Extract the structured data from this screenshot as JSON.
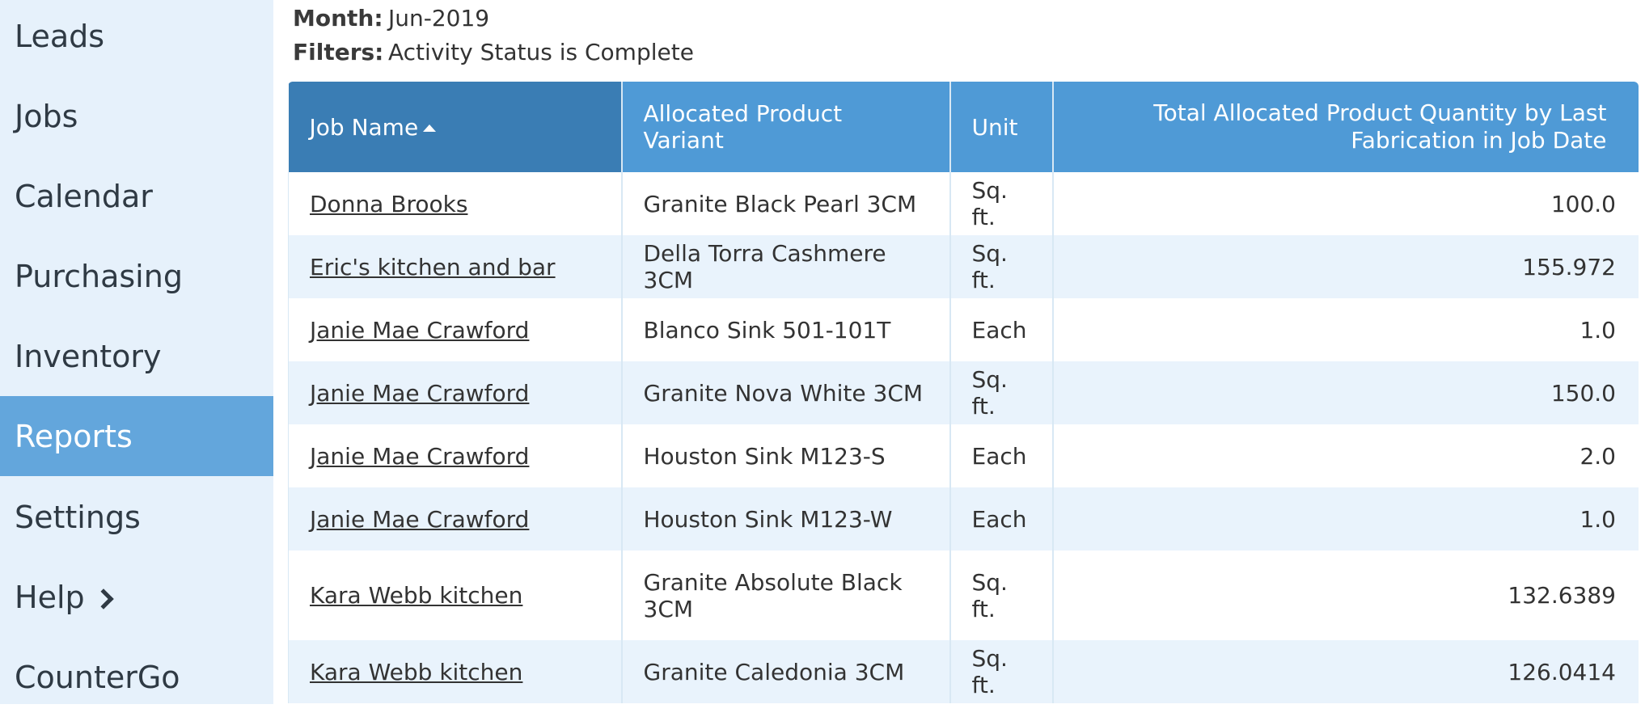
{
  "sidebar": {
    "items": [
      {
        "label": "Leads"
      },
      {
        "label": "Jobs"
      },
      {
        "label": "Calendar"
      },
      {
        "label": "Purchasing"
      },
      {
        "label": "Inventory"
      },
      {
        "label": "Reports"
      },
      {
        "label": "Settings"
      },
      {
        "label": "Help"
      },
      {
        "label": "CounterGo"
      }
    ],
    "active": "Reports"
  },
  "report": {
    "month_label": "Month:",
    "month_value": "Jun-2019",
    "filters_label": "Filters:",
    "filters_value": "Activity Status is Complete"
  },
  "table": {
    "columns": [
      {
        "label": "Job Name",
        "sort": "ascending"
      },
      {
        "label": "Allocated Product Variant"
      },
      {
        "label": "Unit"
      },
      {
        "label": "Total Allocated Product Quantity by Last Fabrication in Job Date"
      }
    ],
    "rows": [
      {
        "job": "Donna Brooks",
        "variant": "Granite Black Pearl 3CM",
        "unit": "Sq. ft.",
        "qty": "100.0"
      },
      {
        "job": "Eric's kitchen and bar",
        "variant": "Della Torra Cashmere 3CM",
        "unit": "Sq. ft.",
        "qty": "155.972"
      },
      {
        "job": "Janie Mae Crawford",
        "variant": "Blanco Sink 501-101T",
        "unit": "Each",
        "qty": "1.0"
      },
      {
        "job": "Janie Mae Crawford",
        "variant": "Granite Nova White 3CM",
        "unit": "Sq. ft.",
        "qty": "150.0"
      },
      {
        "job": "Janie Mae Crawford",
        "variant": "Houston Sink M123-S",
        "unit": "Each",
        "qty": "2.0"
      },
      {
        "job": "Janie Mae Crawford",
        "variant": "Houston Sink M123-W",
        "unit": "Each",
        "qty": "1.0"
      },
      {
        "job": "Kara Webb kitchen",
        "variant": "Granite Absolute Black 3CM",
        "unit": "Sq. ft.",
        "qty": "132.6389"
      },
      {
        "job": "Kara Webb kitchen",
        "variant": "Granite Caledonia 3CM",
        "unit": "Sq. ft.",
        "qty": "126.0414"
      }
    ]
  },
  "colors": {
    "sidebar_bg": "#e6f1fb",
    "active_nav": "#63a6dc",
    "header_bg": "#4f9ad6",
    "header_sorted": "#3a7db4",
    "stripe": "#e9f3fc"
  }
}
